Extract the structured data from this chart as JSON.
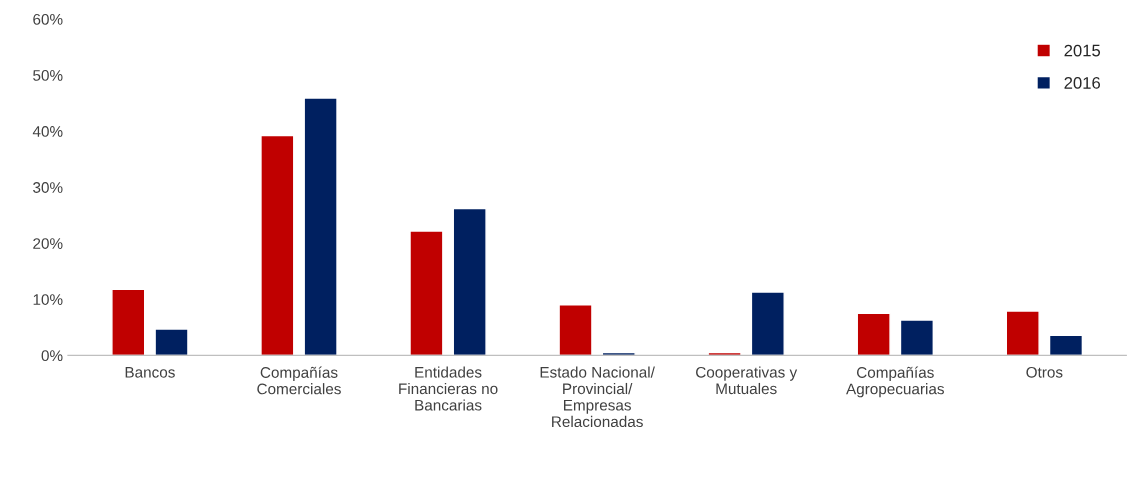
{
  "chart_data": {
    "type": "bar",
    "categories": [
      "Bancos",
      "Compañías\nComerciales",
      "Entidades\nFinancieras no\nBancarias",
      "Estado Nacional/\nProvincial/\nEmpresas\nRelacionadas",
      "Cooperativas y\nMutuales",
      "Compañías\nAgropecuarias",
      "Otros"
    ],
    "series": [
      {
        "name": "2015",
        "color": "#c00000",
        "values": [
          11.8,
          39.2,
          22.2,
          9.0,
          0.5,
          7.5,
          7.9
        ]
      },
      {
        "name": "2016",
        "color": "#002060",
        "values": [
          4.7,
          45.9,
          26.2,
          0.5,
          11.3,
          6.3,
          3.6
        ]
      }
    ],
    "ylim": [
      0,
      60
    ],
    "yticks": [
      {
        "value": 0,
        "label": "0%"
      },
      {
        "value": 10,
        "label": "10%"
      },
      {
        "value": 20,
        "label": "20%"
      },
      {
        "value": 30,
        "label": "30%"
      },
      {
        "value": 40,
        "label": "40%"
      },
      {
        "value": 50,
        "label": "50%"
      },
      {
        "value": 60,
        "label": "60%"
      }
    ],
    "grid": false,
    "legend": "top right"
  }
}
